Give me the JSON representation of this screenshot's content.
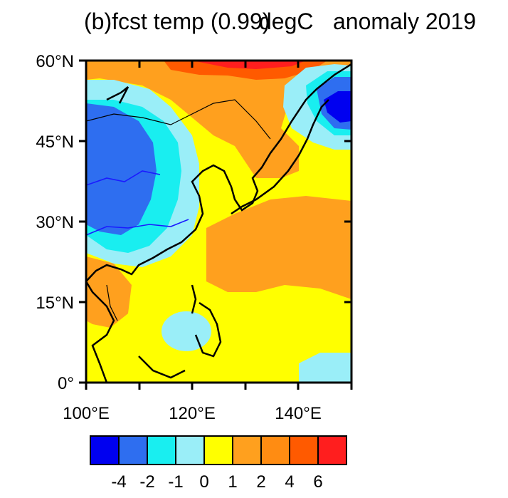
{
  "title": {
    "main": "(b)fcst temp (0.99)",
    "overlap": "degC",
    "suffix": "anomaly 2019"
  },
  "map": {
    "lat_labels": [
      "60°N",
      "45°N",
      "30°N",
      "15°N",
      "0°"
    ],
    "lon_labels": [
      "100°E",
      "120°E",
      "140°E"
    ],
    "extent": {
      "lon": [
        100,
        150
      ],
      "lat": [
        0,
        60
      ]
    }
  },
  "colorbar": {
    "colors": [
      "#0000f0",
      "#2e6ef0",
      "#19eef0",
      "#9aeef8",
      "#ffff00",
      "#ffa01e",
      "#ff8c12",
      "#ff5a00",
      "#ff1e1e"
    ],
    "labels": [
      "-4",
      "-2",
      "-1",
      "0",
      "1",
      "2",
      "4",
      "6"
    ]
  }
}
